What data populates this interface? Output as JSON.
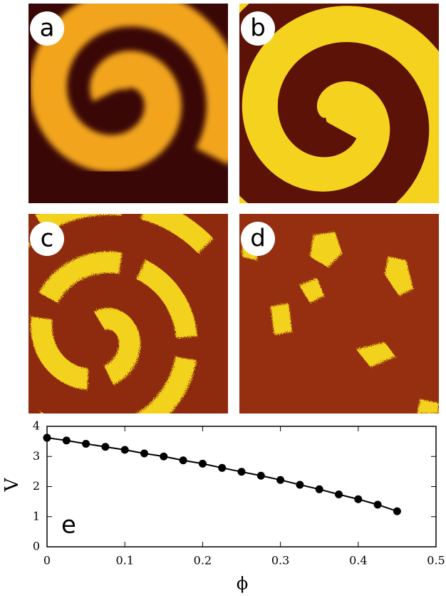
{
  "panel_labels": [
    "a",
    "b",
    "c",
    "d"
  ],
  "chart_data": {
    "type": "line",
    "annotation": "e",
    "xlabel": "ϕ",
    "ylabel": "V",
    "x": [
      0,
      0.025,
      0.05,
      0.075,
      0.1,
      0.125,
      0.15,
      0.175,
      0.2,
      0.225,
      0.25,
      0.275,
      0.3,
      0.325,
      0.35,
      0.375,
      0.4,
      0.425,
      0.45
    ],
    "values": [
      3.62,
      3.53,
      3.42,
      3.32,
      3.22,
      3.1,
      3.0,
      2.87,
      2.76,
      2.62,
      2.49,
      2.36,
      2.22,
      2.06,
      1.91,
      1.74,
      1.58,
      1.4,
      1.18
    ],
    "color": "#000000",
    "xlim": [
      0,
      0.5
    ],
    "xticks": [
      0,
      0.1,
      0.2,
      0.3,
      0.4,
      0.5
    ],
    "ylim": [
      0,
      4
    ],
    "yticks": [
      0,
      1,
      2,
      3,
      4
    ]
  }
}
